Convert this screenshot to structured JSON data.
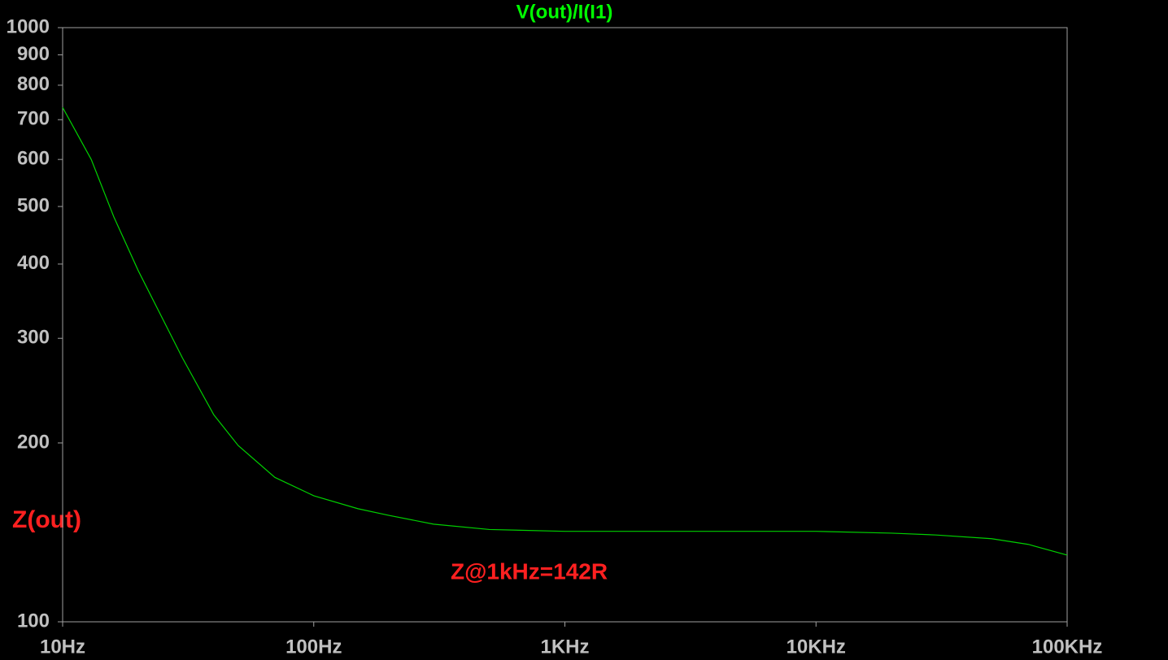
{
  "chart_data": {
    "type": "line",
    "title": "V(out)/I(I1)",
    "title_color": "#00ff00",
    "x": [
      10,
      13,
      16,
      20,
      30,
      40,
      50,
      70,
      100,
      150,
      200,
      300,
      500,
      1000,
      2000,
      5000,
      10000,
      20000,
      30000,
      50000,
      70000,
      100000
    ],
    "series": [
      {
        "name": "V(out)/I(I1)",
        "color": "#00d000",
        "values": [
          734,
          600,
          480,
          390,
          278,
          223,
          198,
          175,
          163,
          155,
          151,
          146,
          143,
          142,
          142,
          142,
          142,
          141,
          140,
          138,
          135,
          129.5
        ]
      }
    ],
    "xlim": [
      10,
      100000
    ],
    "ylim": [
      100,
      1000
    ],
    "xscale": "log",
    "yscale": "log",
    "xticks": [
      {
        "value": 10,
        "label": "10Hz"
      },
      {
        "value": 100,
        "label": "100Hz"
      },
      {
        "value": 1000,
        "label": "1KHz"
      },
      {
        "value": 10000,
        "label": "10KHz"
      },
      {
        "value": 100000,
        "label": "100KHz"
      }
    ],
    "yticks": [
      100,
      200,
      300,
      400,
      500,
      600,
      700,
      800,
      900,
      1000
    ],
    "y_label": "Z(out)",
    "annotation": "Z@1kHz=142R",
    "annotation_color": "#ff2020"
  }
}
